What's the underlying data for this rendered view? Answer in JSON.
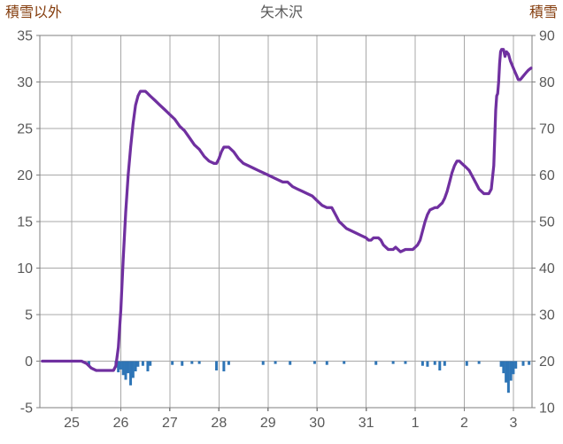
{
  "chart_data": {
    "type": "line",
    "title": "矢木沢",
    "left_axis": {
      "label": "積雪以外",
      "min": -5,
      "max": 35,
      "ticks": [
        -5,
        0,
        5,
        10,
        15,
        20,
        25,
        30,
        35
      ],
      "tick_labels": [
        "-5",
        "0",
        "5",
        "10",
        "15",
        "20",
        "25",
        "30",
        "35"
      ]
    },
    "right_axis": {
      "label": "積雪",
      "min": 10,
      "max": 90,
      "ticks": [
        10,
        20,
        30,
        40,
        50,
        60,
        70,
        80,
        90
      ],
      "tick_labels": [
        "10",
        "20",
        "30",
        "40",
        "50",
        "60",
        "70",
        "80",
        "90"
      ]
    },
    "x_axis": {
      "tick_labels": [
        "25",
        "26",
        "27",
        "28",
        "29",
        "30",
        "31",
        "1",
        "2",
        "3"
      ],
      "days": [
        25,
        26,
        27,
        28,
        29,
        30,
        31,
        32,
        33,
        34
      ],
      "domain": [
        24.35,
        34.38
      ]
    },
    "colors": {
      "line": "#7030A0",
      "bar": "#2E75B6",
      "grid": "#A8A8A8",
      "border": "#7F7F7F",
      "tick_text": "#595959",
      "title_text": "#595959",
      "axis_title_text": "#843C0C",
      "background": "#FFFFFF"
    },
    "grid": true,
    "legend": "none",
    "series": [
      {
        "name": "積雪",
        "type": "line",
        "axis": "right",
        "color": "#7030A0",
        "points": [
          [
            24.4,
            20
          ],
          [
            24.7,
            20
          ],
          [
            25.0,
            20
          ],
          [
            25.2,
            20
          ],
          [
            25.3,
            19.5
          ],
          [
            25.4,
            18.5
          ],
          [
            25.5,
            18
          ],
          [
            25.7,
            18
          ],
          [
            25.85,
            18
          ],
          [
            25.9,
            19
          ],
          [
            25.95,
            23
          ],
          [
            26.0,
            31
          ],
          [
            26.05,
            42
          ],
          [
            26.1,
            52
          ],
          [
            26.15,
            60
          ],
          [
            26.2,
            66
          ],
          [
            26.25,
            71
          ],
          [
            26.3,
            75
          ],
          [
            26.35,
            77
          ],
          [
            26.4,
            78
          ],
          [
            26.45,
            78
          ],
          [
            26.5,
            78
          ],
          [
            26.55,
            77.5
          ],
          [
            26.6,
            77
          ],
          [
            26.7,
            76
          ],
          [
            26.8,
            75
          ],
          [
            26.9,
            74
          ],
          [
            27.0,
            73
          ],
          [
            27.1,
            72
          ],
          [
            27.2,
            70.5
          ],
          [
            27.3,
            69.5
          ],
          [
            27.4,
            68
          ],
          [
            27.5,
            66.5
          ],
          [
            27.6,
            65.5
          ],
          [
            27.7,
            64
          ],
          [
            27.8,
            63
          ],
          [
            27.9,
            62.5
          ],
          [
            27.95,
            62.5
          ],
          [
            28.0,
            63.5
          ],
          [
            28.05,
            65
          ],
          [
            28.1,
            66
          ],
          [
            28.2,
            66
          ],
          [
            28.3,
            65
          ],
          [
            28.4,
            63.5
          ],
          [
            28.5,
            62.5
          ],
          [
            28.6,
            62
          ],
          [
            28.7,
            61.5
          ],
          [
            28.8,
            61
          ],
          [
            28.9,
            60.5
          ],
          [
            29.0,
            60
          ],
          [
            29.1,
            59.5
          ],
          [
            29.2,
            59
          ],
          [
            29.3,
            58.5
          ],
          [
            29.4,
            58.5
          ],
          [
            29.5,
            57.5
          ],
          [
            29.6,
            57
          ],
          [
            29.7,
            56.5
          ],
          [
            29.8,
            56
          ],
          [
            29.9,
            55.5
          ],
          [
            30.0,
            54.5
          ],
          [
            30.1,
            53.5
          ],
          [
            30.2,
            53
          ],
          [
            30.3,
            53
          ],
          [
            30.35,
            52
          ],
          [
            30.4,
            51
          ],
          [
            30.45,
            50
          ],
          [
            30.5,
            49.5
          ],
          [
            30.6,
            48.5
          ],
          [
            30.7,
            48
          ],
          [
            30.8,
            47.5
          ],
          [
            30.9,
            47
          ],
          [
            31.0,
            46.5
          ],
          [
            31.05,
            46
          ],
          [
            31.1,
            46
          ],
          [
            31.15,
            46.5
          ],
          [
            31.25,
            46.5
          ],
          [
            31.3,
            46
          ],
          [
            31.35,
            45
          ],
          [
            31.4,
            44.5
          ],
          [
            31.45,
            44
          ],
          [
            31.55,
            44
          ],
          [
            31.6,
            44.5
          ],
          [
            31.7,
            43.5
          ],
          [
            31.8,
            44
          ],
          [
            31.9,
            44
          ],
          [
            31.95,
            44
          ],
          [
            32.0,
            44.5
          ],
          [
            32.05,
            45
          ],
          [
            32.1,
            46
          ],
          [
            32.15,
            48
          ],
          [
            32.2,
            50
          ],
          [
            32.25,
            51.5
          ],
          [
            32.3,
            52.5
          ],
          [
            32.4,
            53
          ],
          [
            32.45,
            53
          ],
          [
            32.5,
            53.5
          ],
          [
            32.55,
            54
          ],
          [
            32.6,
            55
          ],
          [
            32.65,
            56.5
          ],
          [
            32.7,
            58.5
          ],
          [
            32.75,
            60.5
          ],
          [
            32.8,
            62
          ],
          [
            32.85,
            63
          ],
          [
            32.9,
            63
          ],
          [
            32.95,
            62.5
          ],
          [
            33.0,
            62
          ],
          [
            33.05,
            61.5
          ],
          [
            33.1,
            61
          ],
          [
            33.15,
            60
          ],
          [
            33.2,
            59
          ],
          [
            33.25,
            58
          ],
          [
            33.3,
            57
          ],
          [
            33.35,
            56.5
          ],
          [
            33.4,
            56
          ],
          [
            33.45,
            56
          ],
          [
            33.5,
            56
          ],
          [
            33.55,
            57
          ],
          [
            33.6,
            62
          ],
          [
            33.62,
            68
          ],
          [
            33.64,
            74
          ],
          [
            33.66,
            77
          ],
          [
            33.68,
            77.5
          ],
          [
            33.7,
            80
          ],
          [
            33.72,
            84
          ],
          [
            33.74,
            86.5
          ],
          [
            33.76,
            87
          ],
          [
            33.8,
            87
          ],
          [
            33.83,
            85.5
          ],
          [
            33.86,
            86.5
          ],
          [
            33.9,
            86
          ],
          [
            33.94,
            84.5
          ],
          [
            33.98,
            83.5
          ],
          [
            34.02,
            82.5
          ],
          [
            34.06,
            81.5
          ],
          [
            34.1,
            80.5
          ],
          [
            34.14,
            80.5
          ],
          [
            34.18,
            81
          ],
          [
            34.22,
            81.5
          ],
          [
            34.26,
            82
          ],
          [
            34.3,
            82.5
          ],
          [
            34.36,
            83
          ]
        ]
      },
      {
        "name": "積雪以外",
        "type": "bar",
        "axis": "left",
        "color": "#2E75B6",
        "points": [
          [
            25.35,
            -0.5
          ],
          [
            25.9,
            -0.7
          ],
          [
            25.95,
            -1.2
          ],
          [
            26.0,
            -0.9
          ],
          [
            26.05,
            -1.5
          ],
          [
            26.1,
            -2.0
          ],
          [
            26.15,
            -1.3
          ],
          [
            26.2,
            -2.6
          ],
          [
            26.25,
            -1.8
          ],
          [
            26.3,
            -1.1
          ],
          [
            26.35,
            -0.6
          ],
          [
            26.45,
            -0.5
          ],
          [
            26.55,
            -1.1
          ],
          [
            26.6,
            -0.5
          ],
          [
            27.05,
            -0.4
          ],
          [
            27.25,
            -0.5
          ],
          [
            27.45,
            -0.3
          ],
          [
            27.6,
            -0.3
          ],
          [
            27.95,
            -1.0
          ],
          [
            28.1,
            -1.1
          ],
          [
            28.2,
            -0.4
          ],
          [
            28.9,
            -0.4
          ],
          [
            29.15,
            -0.3
          ],
          [
            29.45,
            -0.4
          ],
          [
            29.95,
            -0.3
          ],
          [
            30.2,
            -0.4
          ],
          [
            30.55,
            -0.3
          ],
          [
            31.2,
            -0.4
          ],
          [
            31.55,
            -0.3
          ],
          [
            31.8,
            -0.3
          ],
          [
            32.15,
            -0.5
          ],
          [
            32.25,
            -0.6
          ],
          [
            32.4,
            -0.4
          ],
          [
            32.5,
            -1.0
          ],
          [
            32.6,
            -0.5
          ],
          [
            33.05,
            -0.5
          ],
          [
            33.3,
            -0.3
          ],
          [
            33.75,
            -0.6
          ],
          [
            33.8,
            -1.3
          ],
          [
            33.85,
            -2.3
          ],
          [
            33.9,
            -3.4
          ],
          [
            33.95,
            -2.1
          ],
          [
            34.0,
            -1.4
          ],
          [
            34.05,
            -0.8
          ],
          [
            34.2,
            -0.5
          ],
          [
            34.32,
            -0.4
          ]
        ]
      }
    ]
  }
}
